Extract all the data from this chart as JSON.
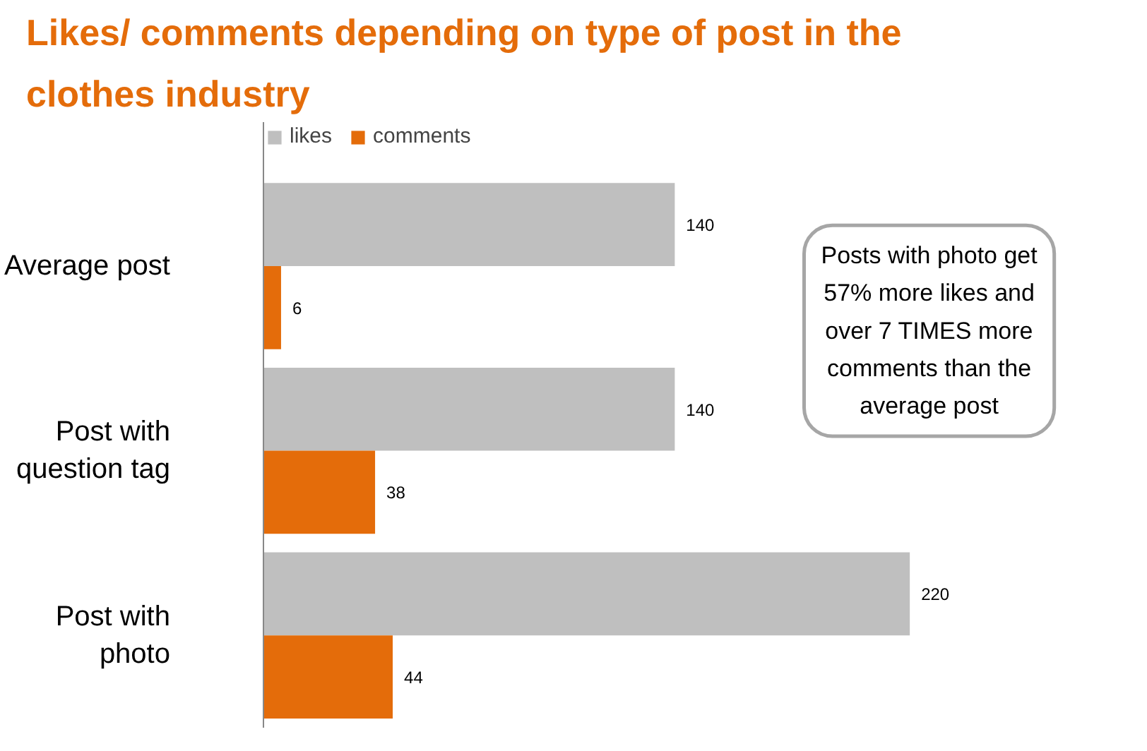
{
  "chart_data": {
    "type": "bar",
    "orientation": "horizontal",
    "title": "Likes/ comments depending on type of post in the clothes industry",
    "categories": [
      "Average post",
      "Post with question tag",
      "Post with photo"
    ],
    "series": [
      {
        "name": "likes",
        "color": "#bfbfbf",
        "values": [
          140,
          140,
          220
        ]
      },
      {
        "name": "comments",
        "color": "#e46c0a",
        "values": [
          6,
          38,
          44
        ]
      }
    ],
    "data_labels": true,
    "legend": "top left",
    "grid": false,
    "tick_labels": "y",
    "annotations": [
      "Posts with photo get 57% more likes and over 7 TIMES more comments than the average post"
    ]
  }
}
